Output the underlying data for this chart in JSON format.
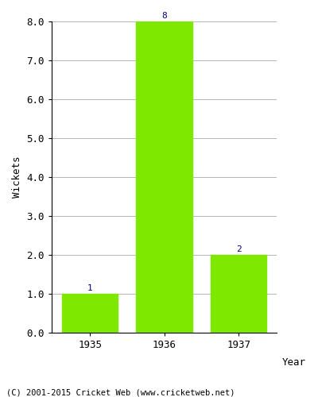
{
  "categories": [
    "1935",
    "1936",
    "1937"
  ],
  "values": [
    1,
    8,
    2
  ],
  "bar_color": "#7FE800",
  "ylabel": "Wickets",
  "ylim": [
    0.0,
    8.0
  ],
  "yticks": [
    0.0,
    1.0,
    2.0,
    3.0,
    4.0,
    5.0,
    6.0,
    7.0,
    8.0
  ],
  "label_color": "#000080",
  "label_fontsize": 8,
  "axis_label_fontsize": 9,
  "tick_fontsize": 9,
  "footer_text": "(C) 2001-2015 Cricket Web (www.cricketweb.net)",
  "footer_fontsize": 7.5,
  "background_color": "#ffffff",
  "year_label": "Year"
}
